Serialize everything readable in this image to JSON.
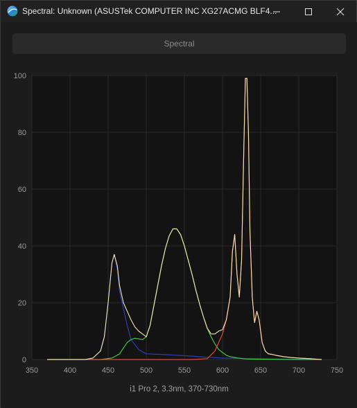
{
  "window": {
    "title": "Spectral: Unknown (ASUSTek COMPUTER INC XG27ACMG BLF4...",
    "controls": [
      "minimize-icon",
      "maximize-icon",
      "close-icon"
    ]
  },
  "toolbar": {
    "spectral_label": "Spectral"
  },
  "chart_caption": "i1 Pro 2, 3.3nm, 370-730nm",
  "colors": {
    "background": "#131313",
    "grid": "#2a2a2a",
    "red": "#e04a3a",
    "green": "#3ec93e",
    "blue": "#2c3fb0",
    "total": "#f3e7b0"
  },
  "chart_data": {
    "type": "line",
    "title": "",
    "xlabel": "",
    "ylabel": "",
    "xlim": [
      350,
      750
    ],
    "ylim": [
      0,
      100
    ],
    "x_ticks": [
      350,
      400,
      450,
      500,
      550,
      600,
      650,
      700,
      750
    ],
    "y_ticks": [
      0,
      20,
      40,
      60,
      80,
      100
    ],
    "grid": true,
    "series": [
      {
        "color": "#2c3fb0",
        "x": [
          370,
          400,
          420,
          430,
          440,
          445,
          450,
          455,
          458,
          462,
          465,
          470,
          475,
          480,
          490,
          500,
          520,
          540,
          560,
          580,
          600,
          640,
          700,
          730
        ],
        "y": [
          0,
          0,
          0,
          0.5,
          3,
          8,
          20,
          34,
          37,
          32,
          24,
          18,
          12,
          7,
          3.5,
          2,
          1.8,
          1.5,
          1.2,
          0.8,
          0.5,
          0.3,
          0.1,
          0
        ]
      },
      {
        "color": "#3ec93e",
        "x": [
          370,
          440,
          455,
          465,
          470,
          475,
          480,
          485,
          490,
          495,
          500,
          505,
          510,
          515,
          520,
          525,
          530,
          535,
          540,
          545,
          550,
          555,
          560,
          565,
          570,
          575,
          580,
          585,
          590,
          595,
          600,
          605,
          610,
          620,
          630,
          650,
          700,
          730
        ],
        "y": [
          0,
          0,
          0.5,
          2,
          4,
          6,
          7,
          7.5,
          7.3,
          7,
          8,
          12,
          19,
          26,
          33,
          39,
          43.5,
          46,
          46,
          44,
          40,
          35,
          30,
          24.5,
          19.5,
          15,
          11,
          8,
          5.5,
          3.5,
          2.5,
          1.5,
          1,
          0.5,
          0.2,
          0.1,
          0,
          0
        ]
      },
      {
        "color": "#e04a3a",
        "x": [
          370,
          560,
          580,
          590,
          600,
          605,
          610,
          613,
          616,
          619,
          622,
          625,
          628,
          630,
          632,
          634,
          636,
          639,
          642,
          645,
          648,
          652,
          656,
          660,
          665,
          670,
          680,
          690,
          700,
          715,
          730
        ],
        "y": [
          0,
          0,
          0.3,
          3,
          9,
          14,
          22,
          38,
          44,
          30,
          22,
          35,
          75,
          99,
          99,
          80,
          45,
          22,
          13,
          17,
          14,
          6,
          3,
          2,
          1.8,
          1.5,
          1,
          0.7,
          0.5,
          0.3,
          0
        ]
      },
      {
        "color": "#f3e7b0",
        "x": [
          370,
          420,
          430,
          440,
          445,
          450,
          455,
          458,
          462,
          465,
          470,
          475,
          480,
          485,
          490,
          495,
          500,
          505,
          510,
          515,
          520,
          525,
          530,
          535,
          540,
          545,
          550,
          555,
          560,
          565,
          570,
          575,
          580,
          585,
          590,
          595,
          600,
          605,
          610,
          613,
          616,
          619,
          622,
          625,
          628,
          630,
          632,
          634,
          636,
          639,
          642,
          645,
          648,
          652,
          656,
          660,
          665,
          670,
          680,
          690,
          700,
          715,
          730
        ],
        "y": [
          0,
          0,
          0.5,
          3,
          8,
          20,
          34,
          37,
          33,
          26,
          20,
          17,
          14,
          11.5,
          10,
          9,
          8,
          12,
          19,
          26,
          33,
          39,
          43.5,
          46,
          46,
          44,
          40,
          35,
          30,
          24.5,
          19.5,
          15,
          11,
          9,
          9,
          10,
          10.5,
          14,
          22,
          38,
          44,
          30,
          22,
          35,
          75,
          99,
          99,
          80,
          45,
          22,
          13,
          17,
          14,
          6,
          3,
          2,
          1.8,
          1.5,
          1,
          0.7,
          0.5,
          0.3,
          0
        ]
      }
    ]
  }
}
